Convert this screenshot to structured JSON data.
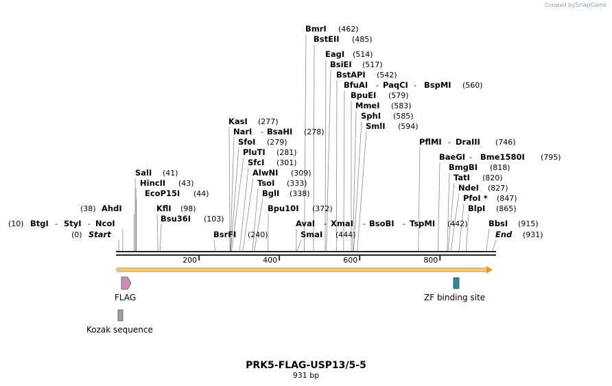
{
  "credit": {
    "text": "Created by",
    "brand": "SnapGene"
  },
  "title": "PRK5-FLAG-USP13/5-5",
  "subtitle": "931 bp",
  "sequence_length": 931,
  "ticks": [
    200,
    400,
    600,
    800
  ],
  "colors": {
    "backbone": "#222222",
    "orf_fill": "#f2c98a",
    "orf_stroke": "#e89a1e",
    "flag": "#c690b4",
    "zf": "#2a8a96",
    "kozak": "#9aa0a8",
    "leader": "#888888"
  },
  "sites": [
    {
      "label": "(10)",
      "type": "pos",
      "pos": 10
    },
    {
      "label": "BtgI",
      "type": "name",
      "pos": 10
    },
    {
      "label": "-",
      "type": "sep"
    },
    {
      "label": "StyI",
      "type": "name",
      "pos": 10
    },
    {
      "label": "-",
      "type": "sep"
    },
    {
      "label": "NcoI",
      "type": "name",
      "pos": 10
    },
    {
      "label": "(0)",
      "type": "pos",
      "pos": 0
    },
    {
      "label": "Start",
      "type": "italic",
      "pos": 0
    },
    {
      "label": "(38)",
      "type": "pos",
      "pos": 38
    },
    {
      "label": "AhdI",
      "type": "name",
      "pos": 38
    },
    {
      "label": "SalI",
      "type": "name",
      "pos": 41
    },
    {
      "label": "(41)",
      "type": "pos"
    },
    {
      "label": "HincII",
      "type": "name",
      "pos": 43
    },
    {
      "label": "(43)",
      "type": "pos"
    },
    {
      "label": "EcoP15I",
      "type": "name",
      "pos": 44
    },
    {
      "label": "(44)",
      "type": "pos"
    },
    {
      "label": "KflI",
      "type": "name",
      "pos": 98
    },
    {
      "label": "(98)",
      "type": "pos"
    },
    {
      "label": "Bsu36I",
      "type": "name",
      "pos": 103
    },
    {
      "label": "(103)",
      "type": "pos"
    },
    {
      "label": "BsrFI",
      "type": "name",
      "pos": 240
    },
    {
      "label": "(240)",
      "type": "pos"
    },
    {
      "label": "KasI",
      "type": "name",
      "pos": 277
    },
    {
      "label": "(277)",
      "type": "pos"
    },
    {
      "label": "NarI",
      "type": "name",
      "pos": 278
    },
    {
      "label": "-",
      "type": "sep"
    },
    {
      "label": "BsaHI",
      "type": "name",
      "pos": 278
    },
    {
      "label": "(278)",
      "type": "pos"
    },
    {
      "label": "SfoI",
      "type": "name",
      "pos": 279
    },
    {
      "label": "(279)",
      "type": "pos"
    },
    {
      "label": "PluTI",
      "type": "name",
      "pos": 281
    },
    {
      "label": "(281)",
      "type": "pos"
    },
    {
      "label": "SfcI",
      "type": "name",
      "pos": 301
    },
    {
      "label": "(301)",
      "type": "pos"
    },
    {
      "label": "AlwNI",
      "type": "name",
      "pos": 309
    },
    {
      "label": "(309)",
      "type": "pos"
    },
    {
      "label": "TsoI",
      "type": "name",
      "pos": 333
    },
    {
      "label": "(333)",
      "type": "pos"
    },
    {
      "label": "BglI",
      "type": "name",
      "pos": 338
    },
    {
      "label": "(338)",
      "type": "pos"
    },
    {
      "label": "Bpu10I",
      "type": "name",
      "pos": 372
    },
    {
      "label": "(372)",
      "type": "pos"
    },
    {
      "label": "AvaI",
      "type": "name",
      "pos": 442
    },
    {
      "label": "-",
      "type": "sep"
    },
    {
      "label": "XmaI",
      "type": "name",
      "pos": 442
    },
    {
      "label": "-",
      "type": "sep"
    },
    {
      "label": "BsoBI",
      "type": "name",
      "pos": 442
    },
    {
      "label": "-",
      "type": "sep"
    },
    {
      "label": "TspMI",
      "type": "name",
      "pos": 442
    },
    {
      "label": "(442)",
      "type": "pos"
    },
    {
      "label": "SmaI",
      "type": "name",
      "pos": 444
    },
    {
      "label": "(444)",
      "type": "pos"
    },
    {
      "label": "BmrI",
      "type": "name",
      "pos": 462
    },
    {
      "label": "(462)",
      "type": "pos"
    },
    {
      "label": "BstEII",
      "type": "name",
      "pos": 485
    },
    {
      "label": "(485)",
      "type": "pos"
    },
    {
      "label": "EagI",
      "type": "name",
      "pos": 514
    },
    {
      "label": "(514)",
      "type": "pos"
    },
    {
      "label": "BsiEI",
      "type": "name",
      "pos": 517
    },
    {
      "label": "(517)",
      "type": "pos"
    },
    {
      "label": "BstAPI",
      "type": "name",
      "pos": 542
    },
    {
      "label": "(542)",
      "type": "pos"
    },
    {
      "label": "BfuAI",
      "type": "name",
      "pos": 560
    },
    {
      "label": "-",
      "type": "sep"
    },
    {
      "label": "PaqCI",
      "type": "name",
      "pos": 560
    },
    {
      "label": "-",
      "type": "sep"
    },
    {
      "label": "BspMI",
      "type": "name",
      "pos": 560
    },
    {
      "label": "(560)",
      "type": "pos"
    },
    {
      "label": "BpuEI",
      "type": "name",
      "pos": 579
    },
    {
      "label": "(579)",
      "type": "pos"
    },
    {
      "label": "MmeI",
      "type": "name",
      "pos": 583
    },
    {
      "label": "(583)",
      "type": "pos"
    },
    {
      "label": "SphI",
      "type": "name",
      "pos": 585
    },
    {
      "label": "(585)",
      "type": "pos"
    },
    {
      "label": "SmlI",
      "type": "name",
      "pos": 594
    },
    {
      "label": "(594)",
      "type": "pos"
    },
    {
      "label": "PflMI",
      "type": "name",
      "pos": 746
    },
    {
      "label": "-",
      "type": "sep"
    },
    {
      "label": "DraIII",
      "type": "name",
      "pos": 746
    },
    {
      "label": "(746)",
      "type": "pos"
    },
    {
      "label": "BaeGI",
      "type": "name",
      "pos": 795
    },
    {
      "label": "-",
      "type": "sep"
    },
    {
      "label": "Bme1580I",
      "type": "name",
      "pos": 795
    },
    {
      "label": "(795)",
      "type": "pos"
    },
    {
      "label": "BmgBI",
      "type": "name",
      "pos": 818
    },
    {
      "label": "(818)",
      "type": "pos"
    },
    {
      "label": "TatI",
      "type": "name",
      "pos": 820
    },
    {
      "label": "(820)",
      "type": "pos"
    },
    {
      "label": "NdeI",
      "type": "name",
      "pos": 827
    },
    {
      "label": "(827)",
      "type": "pos"
    },
    {
      "label": "PfoI *",
      "type": "name",
      "pos": 847
    },
    {
      "label": "(847)",
      "type": "pos"
    },
    {
      "label": "BlpI",
      "type": "name",
      "pos": 865
    },
    {
      "label": "(865)",
      "type": "pos"
    },
    {
      "label": "BbsI",
      "type": "name",
      "pos": 915
    },
    {
      "label": "(915)",
      "type": "pos"
    },
    {
      "label": "End",
      "type": "italic",
      "pos": 931
    },
    {
      "label": "(931)",
      "type": "pos"
    }
  ],
  "features": [
    {
      "name": "FLAG",
      "type": "arrow"
    },
    {
      "name": "ZF binding site",
      "type": "box"
    },
    {
      "name": "Kozak sequence",
      "type": "box"
    }
  ]
}
